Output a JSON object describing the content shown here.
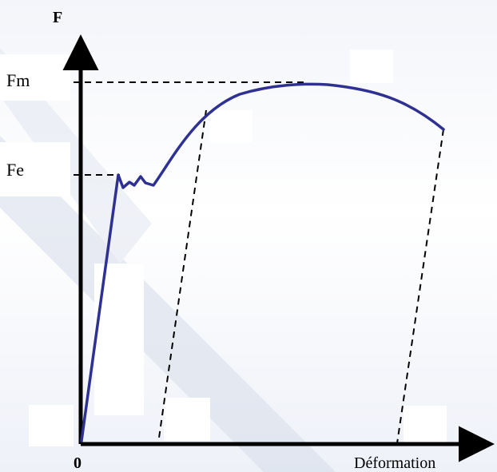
{
  "diagram": {
    "axis_y_label": "F",
    "axis_x_label": "Déformation",
    "origin_label": "0",
    "level_labels": {
      "fm": "Fm",
      "fe": "Fe"
    }
  },
  "colors": {
    "curve": "#2e3192",
    "axes": "#000000",
    "dashed": "#000000",
    "background_stripe": "#c9d1e4"
  }
}
